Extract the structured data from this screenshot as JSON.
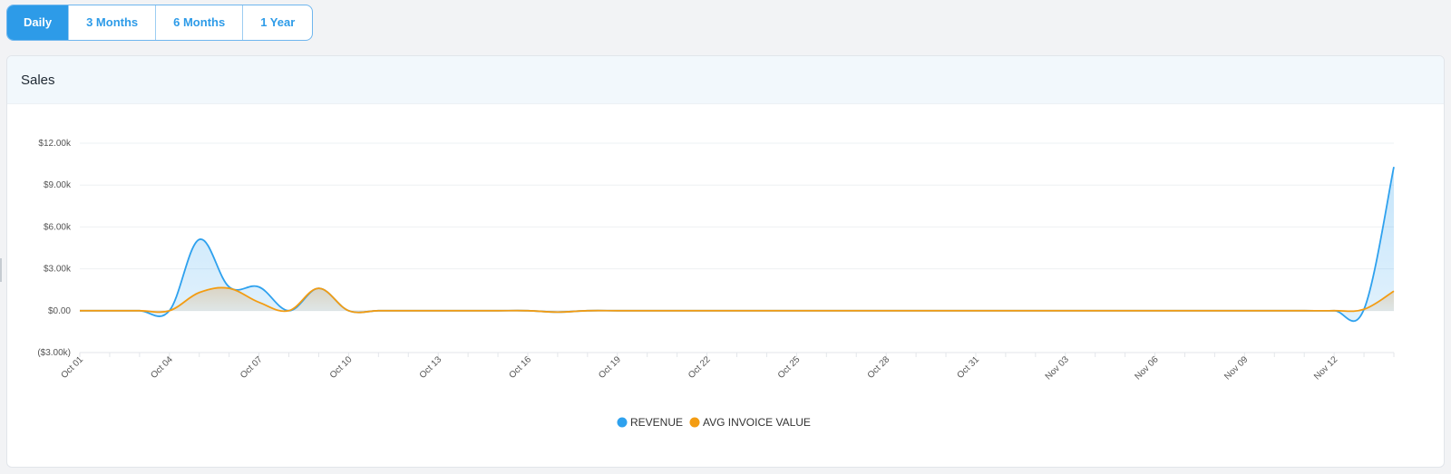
{
  "range_tabs": [
    {
      "label": "Daily",
      "active": true
    },
    {
      "label": "3 Months",
      "active": false
    },
    {
      "label": "6 Months",
      "active": false
    },
    {
      "label": "1 Year",
      "active": false
    }
  ],
  "card": {
    "title": "Sales"
  },
  "colors": {
    "accent": "#2d9be8",
    "revenue": "#2ea1ee",
    "avg_invoice": "#f39c12",
    "header_bg": "#f2f8fc"
  },
  "chart_data": {
    "type": "area",
    "title": "",
    "xlabel": "",
    "ylabel": "",
    "x_tick_labels": [
      "Oct 01",
      "Oct 04",
      "Oct 07",
      "Oct 10",
      "Oct 13",
      "Oct 16",
      "Oct 19",
      "Oct 22",
      "Oct 25",
      "Oct 28",
      "Oct 31",
      "Nov 03",
      "Nov 06",
      "Nov 09",
      "Nov 12"
    ],
    "y_tick_labels": [
      "$12.00k",
      "$9.00k",
      "$6.00k",
      "$3.00k",
      "$0.00",
      "($3.00k)"
    ],
    "ylim": [
      -3000,
      12000
    ],
    "grid": true,
    "legend_position": "bottom-center",
    "x": [
      "Oct 01",
      "Oct 02",
      "Oct 03",
      "Oct 04",
      "Oct 05",
      "Oct 06",
      "Oct 07",
      "Oct 08",
      "Oct 09",
      "Oct 10",
      "Oct 11",
      "Oct 12",
      "Oct 13",
      "Oct 14",
      "Oct 15",
      "Oct 16",
      "Oct 17",
      "Oct 18",
      "Oct 19",
      "Oct 20",
      "Oct 21",
      "Oct 22",
      "Oct 23",
      "Oct 24",
      "Oct 25",
      "Oct 26",
      "Oct 27",
      "Oct 28",
      "Oct 29",
      "Oct 30",
      "Oct 31",
      "Nov 01",
      "Nov 02",
      "Nov 03",
      "Nov 04",
      "Nov 05",
      "Nov 06",
      "Nov 07",
      "Nov 08",
      "Nov 09",
      "Nov 10",
      "Nov 11",
      "Nov 12",
      "Nov 13",
      "Nov 14"
    ],
    "series": [
      {
        "name": "REVENUE",
        "values": [
          0,
          0,
          0,
          0,
          5100,
          1700,
          1700,
          0,
          1600,
          0,
          0,
          0,
          0,
          0,
          0,
          0,
          -100,
          0,
          0,
          0,
          0,
          0,
          0,
          0,
          0,
          0,
          0,
          0,
          0,
          0,
          0,
          0,
          0,
          0,
          0,
          0,
          0,
          0,
          0,
          0,
          0,
          0,
          0,
          100,
          10300
        ]
      },
      {
        "name": "AVG INVOICE VALUE",
        "values": [
          0,
          0,
          0,
          0,
          1300,
          1600,
          600,
          0,
          1600,
          0,
          0,
          0,
          0,
          0,
          0,
          0,
          -100,
          0,
          0,
          0,
          0,
          0,
          0,
          0,
          0,
          0,
          0,
          0,
          0,
          0,
          0,
          0,
          0,
          0,
          0,
          0,
          0,
          0,
          0,
          0,
          0,
          0,
          0,
          100,
          1400
        ]
      }
    ]
  }
}
